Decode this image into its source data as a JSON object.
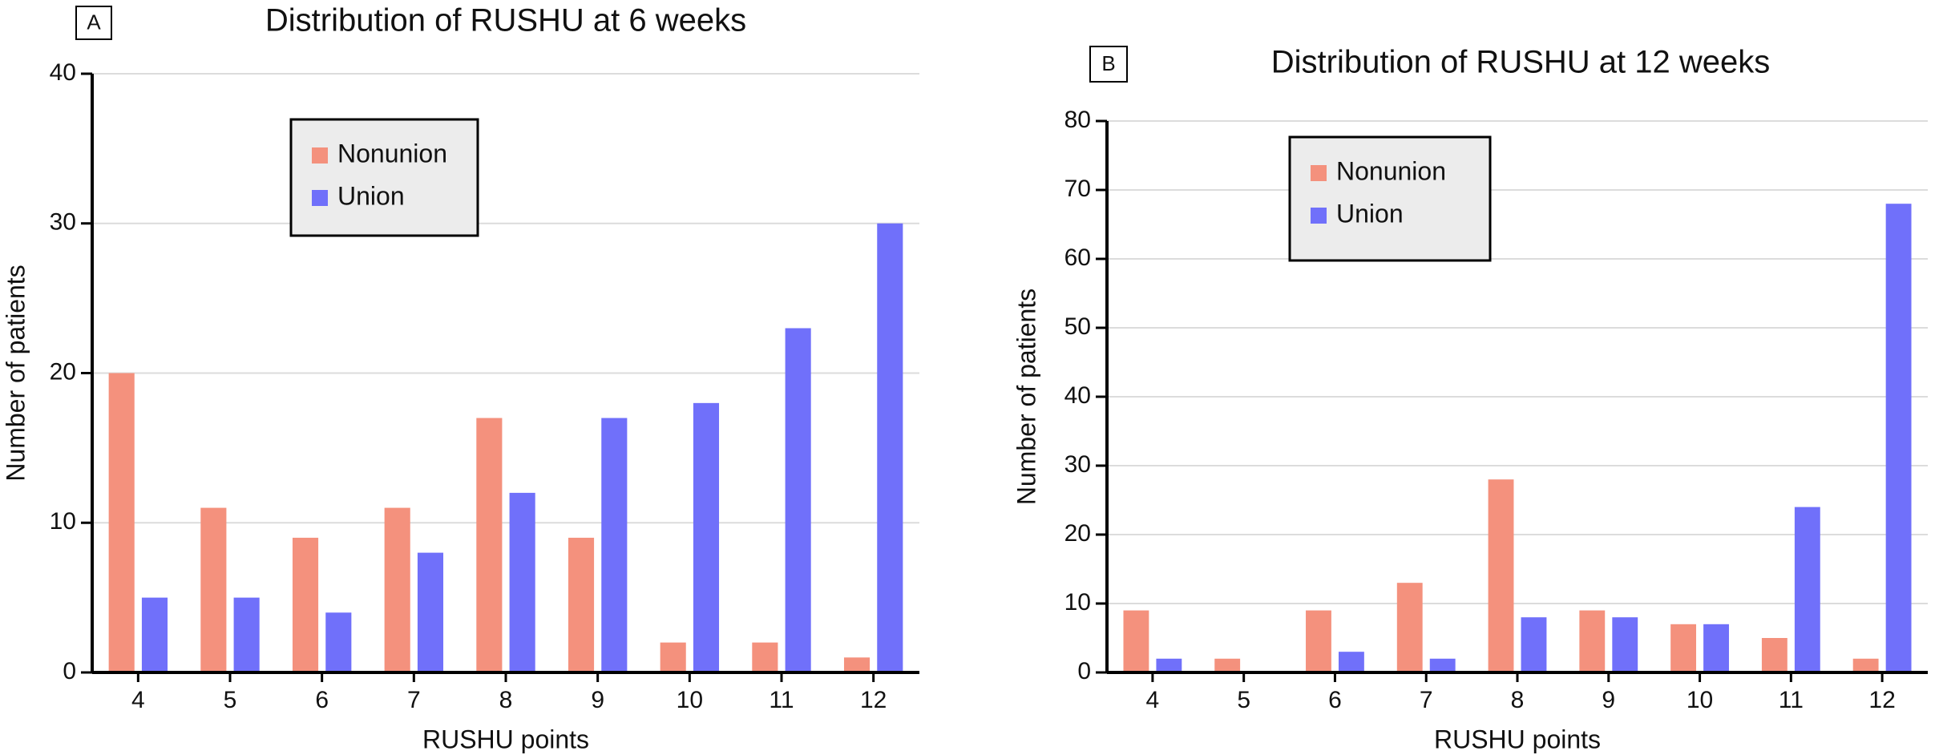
{
  "chart_data": [
    {
      "type": "bar",
      "panel": "A",
      "title": "Distribution of RUSHU at 6 weeks",
      "x_label": "RUSHU points",
      "y_label": "Number of patients",
      "categories": [
        "4",
        "5",
        "6",
        "7",
        "8",
        "9",
        "10",
        "11",
        "12"
      ],
      "series": [
        {
          "name": "Nonunion",
          "color": "#f4917d",
          "values": [
            20,
            11,
            9,
            11,
            17,
            9,
            2,
            2,
            1
          ]
        },
        {
          "name": "Union",
          "color": "#7070fa",
          "values": [
            5,
            5,
            4,
            8,
            12,
            17,
            18,
            23,
            30
          ]
        }
      ],
      "ylim": [
        0,
        40
      ],
      "yticks": [
        0,
        10,
        20,
        30,
        40
      ],
      "grid": true
    },
    {
      "type": "bar",
      "panel": "B",
      "title": "Distribution of RUSHU at 12 weeks",
      "x_label": "RUSHU points",
      "y_label": "Number of patients",
      "categories": [
        "4",
        "5",
        "6",
        "7",
        "8",
        "9",
        "10",
        "11",
        "12"
      ],
      "series": [
        {
          "name": "Nonunion",
          "color": "#f4917d",
          "values": [
            9,
            2,
            9,
            13,
            28,
            9,
            7,
            5,
            2
          ]
        },
        {
          "name": "Union",
          "color": "#7070fa",
          "values": [
            2,
            0,
            3,
            2,
            8,
            8,
            7,
            24,
            68
          ]
        }
      ],
      "ylim": [
        0,
        80
      ],
      "yticks": [
        0,
        10,
        20,
        30,
        40,
        50,
        60,
        70,
        80
      ],
      "grid": true
    }
  ]
}
